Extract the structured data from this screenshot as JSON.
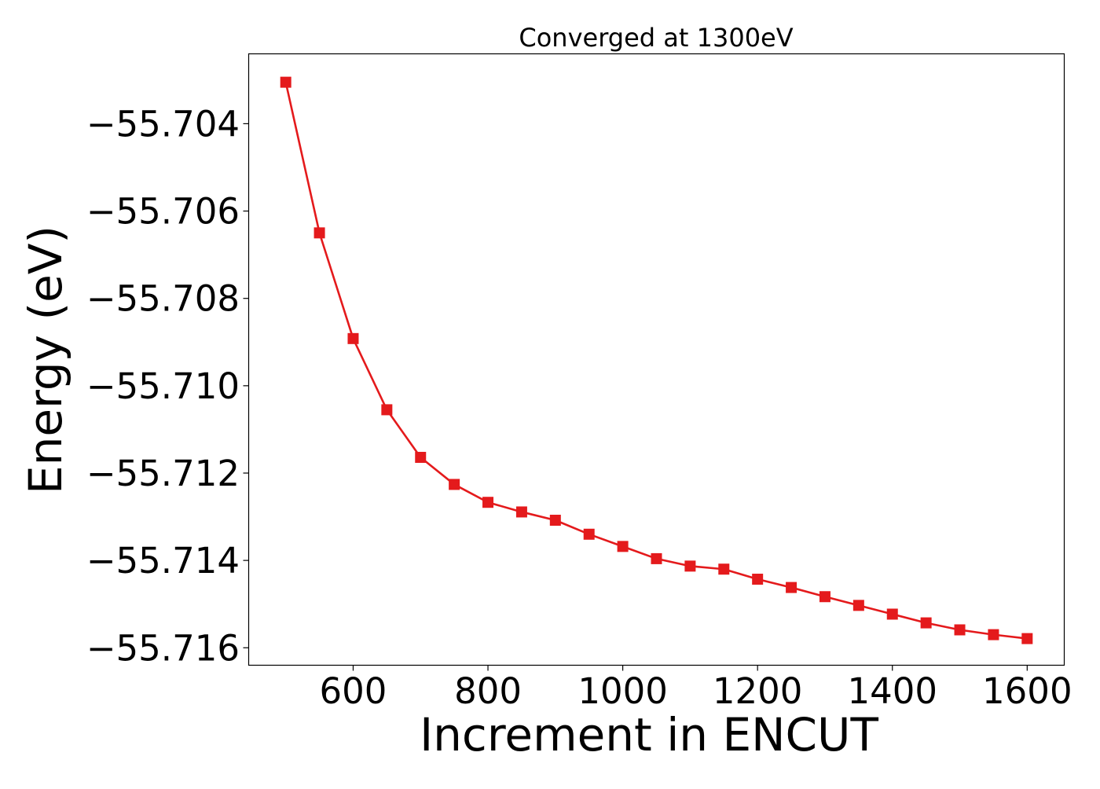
{
  "chart_data": {
    "type": "line",
    "title": "Converged at 1300eV",
    "xlabel": "Increment in ENCUT",
    "ylabel": "Energy (eV)",
    "xlim": [
      445,
      1655
    ],
    "ylim": [
      -55.7164,
      -55.7024
    ],
    "xticks": [
      600,
      800,
      1000,
      1200,
      1400,
      1600
    ],
    "yticks": [
      -55.704,
      -55.706,
      -55.708,
      -55.71,
      -55.712,
      -55.714,
      -55.716
    ],
    "ytick_labels": [
      "−55.704",
      "−55.706",
      "−55.708",
      "−55.710",
      "−55.712",
      "−55.714",
      "−55.716"
    ],
    "grid": false,
    "marker": "square",
    "series": [
      {
        "color": "#e41a1c",
        "x": [
          500,
          550,
          600,
          650,
          700,
          750,
          800,
          850,
          900,
          950,
          1000,
          1050,
          1100,
          1150,
          1200,
          1250,
          1300,
          1350,
          1400,
          1450,
          1500,
          1550,
          1600
        ],
        "y": [
          -55.70305,
          -55.7065,
          -55.70892,
          -55.71055,
          -55.71164,
          -55.71226,
          -55.71267,
          -55.71289,
          -55.71308,
          -55.7134,
          -55.71368,
          -55.71396,
          -55.71413,
          -55.7142,
          -55.71443,
          -55.71462,
          -55.71483,
          -55.71503,
          -55.71523,
          -55.71543,
          -55.71559,
          -55.7157,
          -55.71579
        ]
      }
    ]
  }
}
